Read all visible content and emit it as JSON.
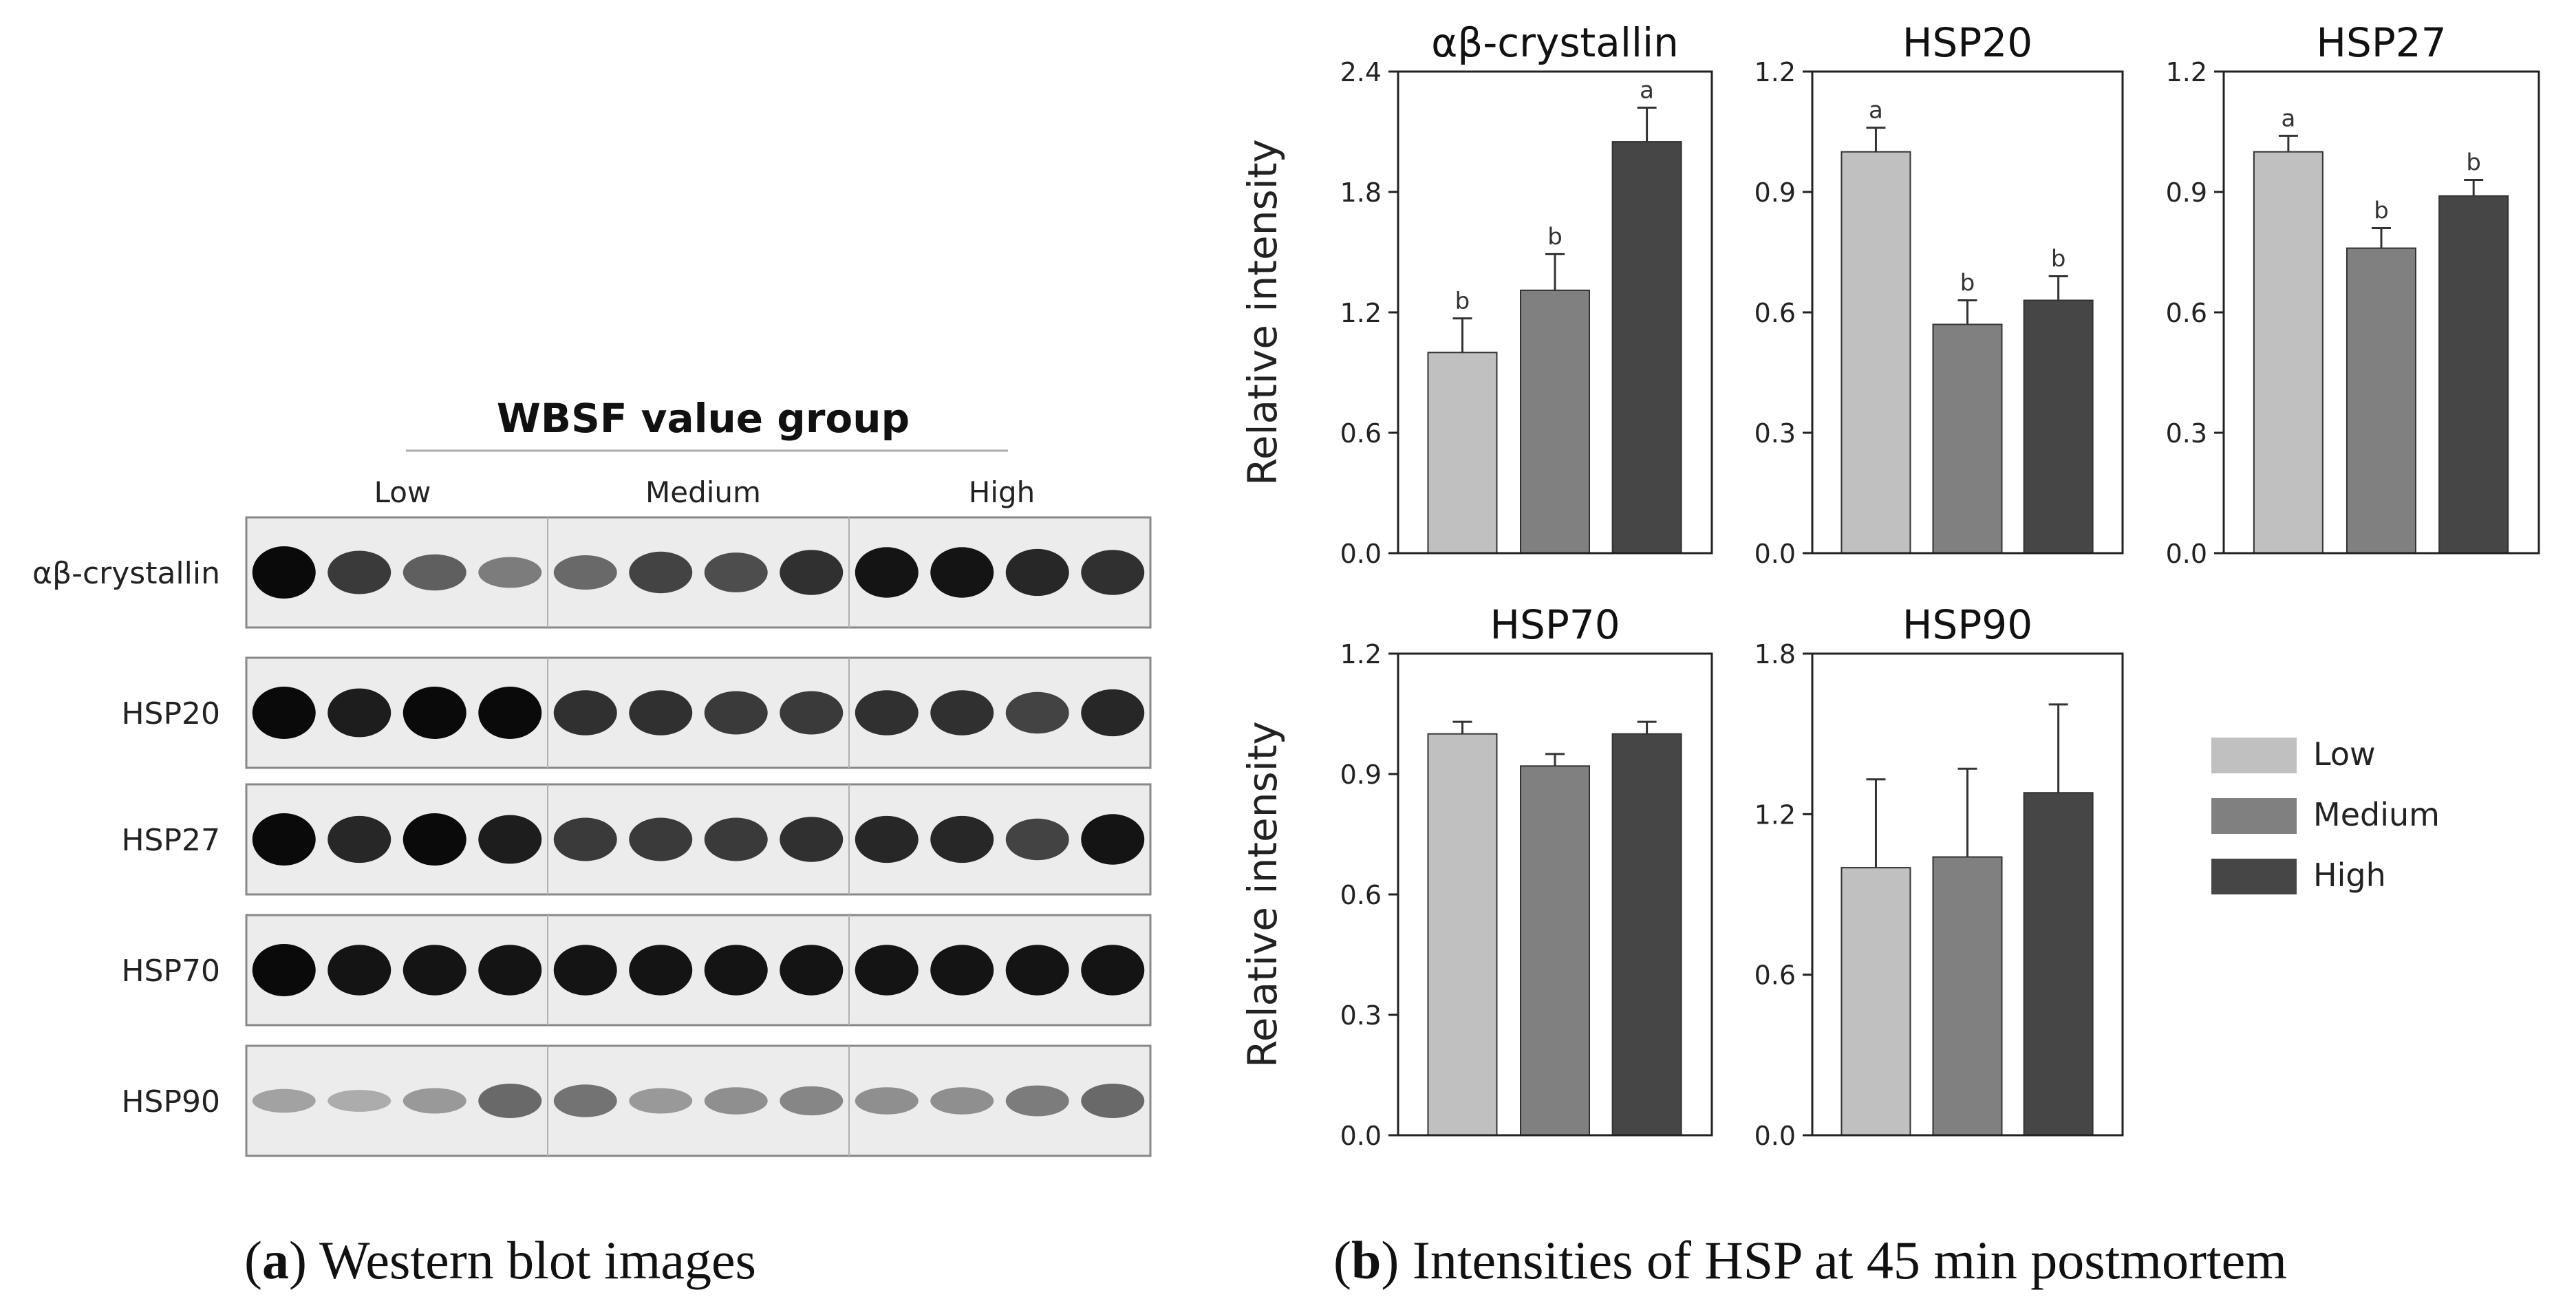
{
  "western_blot": {
    "group_title": "WBSF value group",
    "groups": [
      "Low",
      "Medium",
      "High"
    ],
    "rows": [
      {
        "label": "αβ-crystallin",
        "intensity": [
          1.0,
          0.75,
          0.55,
          0.4,
          0.5,
          0.7,
          0.65,
          0.8,
          0.95,
          0.95,
          0.85,
          0.8
        ]
      },
      {
        "label": "HSP20",
        "intensity": [
          1.0,
          0.9,
          1.0,
          1.0,
          0.8,
          0.8,
          0.75,
          0.75,
          0.8,
          0.8,
          0.7,
          0.85
        ]
      },
      {
        "label": "HSP27",
        "intensity": [
          1.0,
          0.85,
          1.0,
          0.9,
          0.75,
          0.75,
          0.75,
          0.8,
          0.85,
          0.85,
          0.7,
          0.95
        ]
      },
      {
        "label": "HSP70",
        "intensity": [
          1.0,
          0.95,
          0.95,
          0.95,
          0.95,
          0.95,
          0.95,
          0.95,
          0.95,
          0.95,
          0.95,
          0.95
        ]
      },
      {
        "label": "HSP90",
        "intensity": [
          0.2,
          0.15,
          0.25,
          0.5,
          0.45,
          0.25,
          0.3,
          0.35,
          0.3,
          0.3,
          0.4,
          0.5
        ]
      }
    ]
  },
  "chart_data": [
    {
      "type": "bar",
      "title": "αβ-crystallin",
      "categories": [
        "Low",
        "Medium",
        "High"
      ],
      "values": [
        1.0,
        1.31,
        2.05
      ],
      "errors": [
        0.17,
        0.18,
        0.17
      ],
      "letters": [
        "b",
        "b",
        "a"
      ],
      "ylim": [
        0,
        2.4
      ],
      "yticks": [
        "0.0",
        "0.6",
        "1.2",
        "1.8",
        "2.4"
      ],
      "ylabel": "Relative intensity"
    },
    {
      "type": "bar",
      "title": "HSP20",
      "categories": [
        "Low",
        "Medium",
        "High"
      ],
      "values": [
        1.0,
        0.57,
        0.63
      ],
      "errors": [
        0.06,
        0.06,
        0.06
      ],
      "letters": [
        "a",
        "b",
        "b"
      ],
      "ylim": [
        0,
        1.2
      ],
      "yticks": [
        "0.0",
        "0.3",
        "0.6",
        "0.9",
        "1.2"
      ],
      "ylabel": ""
    },
    {
      "type": "bar",
      "title": "HSP27",
      "categories": [
        "Low",
        "Medium",
        "High"
      ],
      "values": [
        1.0,
        0.76,
        0.89
      ],
      "errors": [
        0.04,
        0.05,
        0.04
      ],
      "letters": [
        "a",
        "b",
        "b"
      ],
      "ylim": [
        0,
        1.2
      ],
      "yticks": [
        "0.0",
        "0.3",
        "0.6",
        "0.9",
        "1.2"
      ],
      "ylabel": ""
    },
    {
      "type": "bar",
      "title": "HSP70",
      "categories": [
        "Low",
        "Medium",
        "High"
      ],
      "values": [
        1.0,
        0.92,
        1.0
      ],
      "errors": [
        0.03,
        0.03,
        0.03
      ],
      "letters": [
        "",
        "",
        ""
      ],
      "ylim": [
        0,
        1.2
      ],
      "yticks": [
        "0.0",
        "0.3",
        "0.6",
        "0.9",
        "1.2"
      ],
      "ylabel": "Relative intensity"
    },
    {
      "type": "bar",
      "title": "HSP90",
      "categories": [
        "Low",
        "Medium",
        "High"
      ],
      "values": [
        1.0,
        1.04,
        1.28
      ],
      "errors": [
        0.33,
        0.33,
        0.33
      ],
      "letters": [
        "",
        "",
        ""
      ],
      "ylim": [
        0,
        1.8
      ],
      "yticks": [
        "0.0",
        "0.6",
        "1.2",
        "1.8"
      ],
      "ylabel": ""
    }
  ],
  "legend": {
    "items": [
      {
        "label": "Low",
        "color": "#c0c0c0"
      },
      {
        "label": "Medium",
        "color": "#808080"
      },
      {
        "label": "High",
        "color": "#464646"
      }
    ]
  },
  "colors": {
    "bars": [
      "#c0c0c0",
      "#808080",
      "#464646"
    ]
  },
  "captions": {
    "a": {
      "letter": "a",
      "text": ") Western blot images"
    },
    "b": {
      "letter": "b",
      "text": ") Intensities of HSP at 45 min postmortem"
    }
  }
}
